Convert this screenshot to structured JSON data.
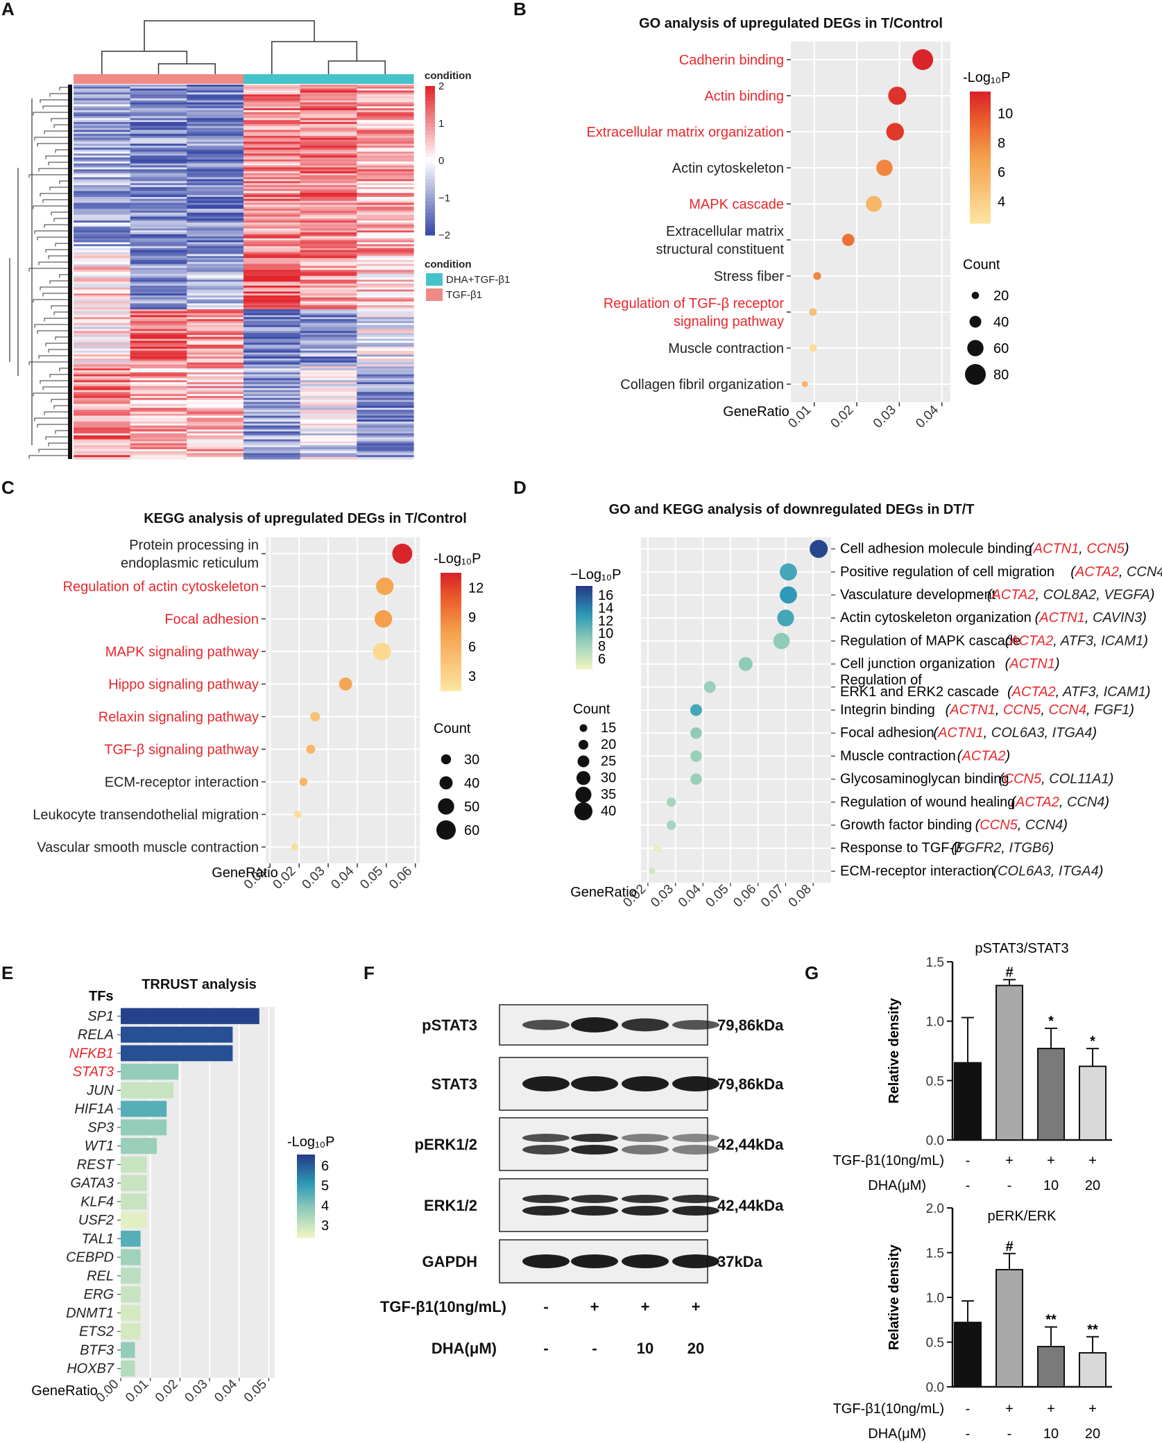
{
  "panel_labels": [
    "A",
    "B",
    "C",
    "D",
    "E",
    "F",
    "G"
  ],
  "chart_data": [
    {
      "panel": "A",
      "type": "heatmap",
      "legend_title": "condition",
      "scale_ticks": [
        "2",
        "1",
        "0",
        "−1",
        "−2"
      ],
      "groups": [
        {
          "name": "DHA+TGF-β1",
          "color": "#45c3cb"
        },
        {
          "name": "TGF-β1",
          "color": "#f08a85"
        }
      ],
      "columns": [
        "TGF-β1",
        "TGF-β1",
        "TGF-β1",
        "DHA+TGF-β1",
        "DHA+TGF-β1",
        "DHA+TGF-β1"
      ]
    },
    {
      "panel": "B",
      "type": "scatter",
      "title": "GO analysis of upregulated DEGs in T/Control",
      "xlabel": "GeneRatio",
      "xticks": [
        "0.01",
        "0.02",
        "0.03",
        "0.04"
      ],
      "xlim": [
        0.0045,
        0.042
      ],
      "color_title": "-Log₁₀P",
      "color_ticks": [
        "10",
        "8",
        "6",
        "4"
      ],
      "size_title": "Count",
      "size_ticks": [
        "20",
        "40",
        "60",
        "80"
      ],
      "terms": [
        {
          "label": "Cadherin binding",
          "lines": [
            "Cadherin binding"
          ],
          "highlight": true,
          "x": 0.0355,
          "logp": 12.0,
          "count": 80
        },
        {
          "label": "Actin binding",
          "lines": [
            "Actin binding"
          ],
          "highlight": true,
          "x": 0.0295,
          "logp": 11.0,
          "count": 68
        },
        {
          "label": "Extracellular matrix organization",
          "lines": [
            "Extracellular matrix organization"
          ],
          "highlight": true,
          "x": 0.029,
          "logp": 10.8,
          "count": 66
        },
        {
          "label": "Actin cytoskeleton",
          "lines": [
            "Actin cytoskeleton"
          ],
          "highlight": false,
          "x": 0.0265,
          "logp": 8.0,
          "count": 60
        },
        {
          "label": "MAPK cascade",
          "lines": [
            "MAPK cascade"
          ],
          "highlight": true,
          "x": 0.024,
          "logp": 5.5,
          "count": 58
        },
        {
          "label": "Extracellular matrix structural constituent",
          "lines": [
            "Extracellular matrix",
            "structural constituent"
          ],
          "highlight": false,
          "x": 0.018,
          "logp": 8.8,
          "count": 42
        },
        {
          "label": "Stress fiber",
          "lines": [
            "Stress fiber"
          ],
          "highlight": false,
          "x": 0.0107,
          "logp": 8.0,
          "count": 22
        },
        {
          "label": "Regulation of TGF-β receptor signaling pathway",
          "lines": [
            "Regulation of TGF-β receptor",
            "signaling pathway"
          ],
          "highlight": true,
          "x": 0.0097,
          "logp": 5.0,
          "count": 21
        },
        {
          "label": "Muscle contraction",
          "lines": [
            "Muscle contraction"
          ],
          "highlight": false,
          "x": 0.0097,
          "logp": 3.0,
          "count": 21
        },
        {
          "label": "Collagen fibril organization",
          "lines": [
            "Collagen fibril organization"
          ],
          "highlight": false,
          "x": 0.0078,
          "logp": 5.5,
          "count": 15
        }
      ]
    },
    {
      "panel": "C",
      "type": "scatter",
      "title": "KEGG analysis of upregulated DEGs in T/Control",
      "xlabel": "GeneRatio",
      "xticks": [
        "0.01",
        "0.02",
        "0.03",
        "0.04",
        "0.05",
        "0.06"
      ],
      "xlim": [
        0.0085,
        0.0615
      ],
      "color_title": "-Log₁₀P",
      "color_ticks": [
        "12",
        "9",
        "6",
        "3"
      ],
      "size_title": "Count",
      "size_ticks": [
        "30",
        "40",
        "50",
        "60"
      ],
      "terms": [
        {
          "label": "Protein processing in endoplasmic reticulum",
          "lines": [
            "Protein processing in",
            "endoplasmic reticulum"
          ],
          "highlight": false,
          "x": 0.0555,
          "logp": 13.5,
          "count": 62
        },
        {
          "label": "Regulation of actin cytoskeleton",
          "lines": [
            "Regulation of actin cytoskeleton"
          ],
          "highlight": true,
          "x": 0.0495,
          "logp": 7.0,
          "count": 54
        },
        {
          "label": "Focal adhesion",
          "lines": [
            "Focal adhesion"
          ],
          "highlight": true,
          "x": 0.049,
          "logp": 7.5,
          "count": 54
        },
        {
          "label": "MAPK signaling pathway",
          "lines": [
            "MAPK signaling pathway"
          ],
          "highlight": true,
          "x": 0.0485,
          "logp": 2.5,
          "count": 55
        },
        {
          "label": "Hippo signaling pathway",
          "lines": [
            "Hippo signaling pathway"
          ],
          "highlight": true,
          "x": 0.036,
          "logp": 7.0,
          "count": 40
        },
        {
          "label": "Relaxin signaling pathway",
          "lines": [
            "Relaxin signaling pathway"
          ],
          "highlight": true,
          "x": 0.0255,
          "logp": 4.5,
          "count": 29
        },
        {
          "label": "TGF-β signaling pathway",
          "lines": [
            "TGF-β signaling pathway"
          ],
          "highlight": true,
          "x": 0.024,
          "logp": 5.5,
          "count": 27
        },
        {
          "label": "ECM-receptor interaction",
          "lines": [
            "ECM-receptor interaction"
          ],
          "highlight": false,
          "x": 0.0215,
          "logp": 5.5,
          "count": 24
        },
        {
          "label": "Leukocyte transendothelial migration",
          "lines": [
            "Leukocyte transendothelial migration"
          ],
          "highlight": false,
          "x": 0.0195,
          "logp": 2.0,
          "count": 22
        },
        {
          "label": "Vascular smooth muscle contraction",
          "lines": [
            "Vascular smooth muscle contraction"
          ],
          "highlight": false,
          "x": 0.0185,
          "logp": 2.0,
          "count": 20
        }
      ]
    },
    {
      "panel": "D",
      "type": "scatter",
      "title": "GO and KEGG analysis of downregulated DEGs in DT/T",
      "xlabel": "GeneRatio",
      "xticks": [
        "0.02",
        "0.03",
        "0.04",
        "0.05",
        "0.06",
        "0.07",
        "0.08"
      ],
      "xlim": [
        0.0175,
        0.0865
      ],
      "color_title": "−Log₁₀P",
      "color_ticks": [
        "16",
        "14",
        "12",
        "10",
        "8",
        "6"
      ],
      "size_title": "Count",
      "size_ticks": [
        "15",
        "20",
        "25",
        "30",
        "35",
        "40"
      ],
      "terms": [
        {
          "label": "Cell adhesion molecule binding",
          "lines": [
            "Cell adhesion molecule binding"
          ],
          "x": 0.082,
          "logp": 17.0,
          "count": 40,
          "genes": [
            {
              "t": "ACTN1",
              "red": true
            },
            {
              "t": "CCN5",
              "red": true
            }
          ]
        },
        {
          "label": "Positive regulation of cell migration",
          "lines": [
            "Positive regulation of cell migration"
          ],
          "x": 0.071,
          "logp": 12.0,
          "count": 38,
          "genes": [
            {
              "t": "ACTA2",
              "red": true
            },
            {
              "t": "CCN4",
              "red": false
            }
          ]
        },
        {
          "label": "Vasculature development",
          "lines": [
            "Vasculature development"
          ],
          "x": 0.071,
          "logp": 13.0,
          "count": 38,
          "genes": [
            {
              "t": "ACTA2",
              "red": true
            },
            {
              "t": "COL8A2",
              "red": false
            },
            {
              "t": "VEGFA",
              "red": false
            }
          ]
        },
        {
          "label": "Actin cytoskeleton organization",
          "lines": [
            "Actin cytoskeleton organization"
          ],
          "x": 0.07,
          "logp": 12.0,
          "count": 37,
          "genes": [
            {
              "t": "ACTN1",
              "red": true
            },
            {
              "t": "CAVIN3",
              "red": false
            }
          ]
        },
        {
          "label": "Regulation of MAPK cascade",
          "lines": [
            "Regulation of MAPK cascade"
          ],
          "x": 0.0685,
          "logp": 9.0,
          "count": 36,
          "genes": [
            {
              "t": "ACTA2",
              "red": true
            },
            {
              "t": "ATF3",
              "red": false
            },
            {
              "t": "ICAM1",
              "red": false
            }
          ]
        },
        {
          "label": "Cell junction organization",
          "lines": [
            "Cell junction organization"
          ],
          "x": 0.0555,
          "logp": 9.0,
          "count": 30,
          "genes": [
            {
              "t": "ACTN1",
              "red": true
            }
          ]
        },
        {
          "label": "Regulation of ERK1 and ERK2 cascade",
          "lines": [
            "Regulation of",
            "ERK1 and ERK2 cascade"
          ],
          "x": 0.0425,
          "logp": 8.5,
          "count": 25,
          "genes": [
            {
              "t": "ACTA2",
              "red": true
            },
            {
              "t": "ATF3",
              "red": false
            },
            {
              "t": "ICAM1",
              "red": false
            }
          ]
        },
        {
          "label": "Integrin binding",
          "lines": [
            "Integrin binding"
          ],
          "x": 0.0375,
          "logp": 12.0,
          "count": 25,
          "genes": [
            {
              "t": "ACTN1",
              "red": true
            },
            {
              "t": "CCN5",
              "red": true
            },
            {
              "t": "CCN4",
              "red": true
            },
            {
              "t": "FGF1",
              "red": false
            }
          ]
        },
        {
          "label": "Focal adhesion",
          "lines": [
            "Focal adhesion"
          ],
          "x": 0.0375,
          "logp": 9.0,
          "count": 24,
          "genes": [
            {
              "t": "ACTN1",
              "red": true
            },
            {
              "t": "COL6A3",
              "red": false
            },
            {
              "t": "ITGA4",
              "red": false
            }
          ]
        },
        {
          "label": "Muscle contraction",
          "lines": [
            "Muscle contraction"
          ],
          "x": 0.0375,
          "logp": 8.5,
          "count": 24,
          "genes": [
            {
              "t": "ACTA2",
              "red": true
            }
          ]
        },
        {
          "label": "Glycosaminoglycan binding",
          "lines": [
            "Glycosaminoglycan binding"
          ],
          "x": 0.0375,
          "logp": 8.5,
          "count": 24,
          "genes": [
            {
              "t": "CCN5",
              "red": true
            },
            {
              "t": "COL11A1",
              "red": false
            }
          ]
        },
        {
          "label": "Regulation of wound healing",
          "lines": [
            "Regulation of wound healing"
          ],
          "x": 0.0285,
          "logp": 8.0,
          "count": 19,
          "genes": [
            {
              "t": "ACTA2",
              "red": true
            },
            {
              "t": "CCN4",
              "red": false
            }
          ]
        },
        {
          "label": "Growth factor binding",
          "lines": [
            "Growth factor binding"
          ],
          "x": 0.0285,
          "logp": 8.0,
          "count": 19,
          "genes": [
            {
              "t": "CCN5",
              "red": true
            },
            {
              "t": "CCN4",
              "red": false
            }
          ]
        },
        {
          "label": "Response to TGF-β",
          "lines": [
            "Response to TGF-β"
          ],
          "x": 0.0235,
          "logp": 5.0,
          "count": 15,
          "genes": [
            {
              "t": "FGFR2",
              "red": false
            },
            {
              "t": "ITGB6",
              "red": false
            }
          ]
        },
        {
          "label": "ECM-receptor interaction",
          "lines": [
            "ECM-receptor interaction"
          ],
          "x": 0.0215,
          "logp": 6.0,
          "count": 12,
          "genes": [
            {
              "t": "COL6A3",
              "red": false
            },
            {
              "t": "ITGA4",
              "red": false
            }
          ]
        }
      ]
    },
    {
      "panel": "E",
      "type": "bar",
      "title": "TRRUST analysis",
      "ylabel_header": "TFs",
      "xlabel": "GeneRatio",
      "xticks": [
        "0.00",
        "0.01",
        "0.02",
        "0.03",
        "0.04",
        "0.05"
      ],
      "xlim": [
        0,
        0.052
      ],
      "color_title": "-Log₁₀P",
      "color_ticks": [
        "6",
        "5",
        "4",
        "3"
      ],
      "bars": [
        {
          "tf": "SP1",
          "x": 0.0468,
          "logp": 6.5,
          "highlight": false
        },
        {
          "tf": "RELA",
          "x": 0.0378,
          "logp": 6.3,
          "highlight": false
        },
        {
          "tf": "NFKB1",
          "x": 0.0378,
          "logp": 6.3,
          "highlight": true
        },
        {
          "tf": "STAT3",
          "x": 0.0195,
          "logp": 3.8,
          "highlight": true
        },
        {
          "tf": "JUN",
          "x": 0.0178,
          "logp": 3.0,
          "highlight": false
        },
        {
          "tf": "HIF1A",
          "x": 0.0155,
          "logp": 4.6,
          "highlight": false
        },
        {
          "tf": "SP3",
          "x": 0.0155,
          "logp": 3.8,
          "highlight": false
        },
        {
          "tf": "WT1",
          "x": 0.0122,
          "logp": 3.7,
          "highlight": false
        },
        {
          "tf": "REST",
          "x": 0.0088,
          "logp": 3.0,
          "highlight": false
        },
        {
          "tf": "GATA3",
          "x": 0.0088,
          "logp": 3.0,
          "highlight": false
        },
        {
          "tf": "KLF4",
          "x": 0.0088,
          "logp": 3.0,
          "highlight": false
        },
        {
          "tf": "USF2",
          "x": 0.0088,
          "logp": 2.6,
          "highlight": false
        },
        {
          "tf": "TAL1",
          "x": 0.0067,
          "logp": 4.6,
          "highlight": false
        },
        {
          "tf": "CEBPD",
          "x": 0.0067,
          "logp": 3.6,
          "highlight": false
        },
        {
          "tf": "REL",
          "x": 0.0067,
          "logp": 3.2,
          "highlight": false
        },
        {
          "tf": "ERG",
          "x": 0.0067,
          "logp": 3.0,
          "highlight": false
        },
        {
          "tf": "DNMT1",
          "x": 0.0067,
          "logp": 2.8,
          "highlight": false
        },
        {
          "tf": "ETS2",
          "x": 0.0067,
          "logp": 2.8,
          "highlight": false
        },
        {
          "tf": "BTF3",
          "x": 0.0048,
          "logp": 3.8,
          "highlight": false
        },
        {
          "tf": "HOXB7",
          "x": 0.0048,
          "logp": 3.3,
          "highlight": false
        }
      ]
    },
    {
      "panel": "G",
      "type": "bar",
      "title": "pSTAT3/STAT3",
      "ylabel": "Relative density",
      "ylim": [
        0,
        1.5
      ],
      "yticks": [
        "0.0",
        "0.5",
        "1.0",
        "1.5"
      ],
      "values": [
        0.65,
        1.3,
        0.77,
        0.62
      ],
      "errors": [
        0.38,
        0.05,
        0.17,
        0.15
      ],
      "marks": [
        "",
        "#",
        "*",
        "*"
      ]
    },
    {
      "panel": "G",
      "type": "bar",
      "title": "pERK/ERK",
      "ylabel": "Relative density",
      "ylim": [
        0,
        2.0
      ],
      "yticks": [
        "0.0",
        "0.5",
        "1.0",
        "1.5",
        "2.0"
      ],
      "values": [
        0.72,
        1.31,
        0.45,
        0.38
      ],
      "errors": [
        0.24,
        0.18,
        0.22,
        0.18
      ],
      "marks": [
        "",
        "#",
        "**",
        "**"
      ]
    }
  ],
  "blot": {
    "rows": [
      {
        "name": "pSTAT3",
        "size": "79,86kDa"
      },
      {
        "name": "STAT3",
        "size": "79,86kDa"
      },
      {
        "name": "pERK1/2",
        "size": "42,44kDa"
      },
      {
        "name": "ERK1/2",
        "size": "42,44kDa"
      },
      {
        "name": "GAPDH",
        "size": "37kDa"
      }
    ],
    "tgf_label": "TGF-β1(10ng/mL)",
    "tgf": [
      "-",
      "+",
      "+",
      "+"
    ],
    "dha_label": "DHA(μM)",
    "dha": [
      "-",
      "-",
      "10",
      "20"
    ]
  },
  "colors": {
    "red_text": "#e8262b",
    "panel_bg": "#ebebeb",
    "bar_dark": "#111111",
    "bar_mid": "#a9a9a9",
    "bar_gray": "#7a7a7a",
    "bar_light": "#d9d9d9"
  }
}
